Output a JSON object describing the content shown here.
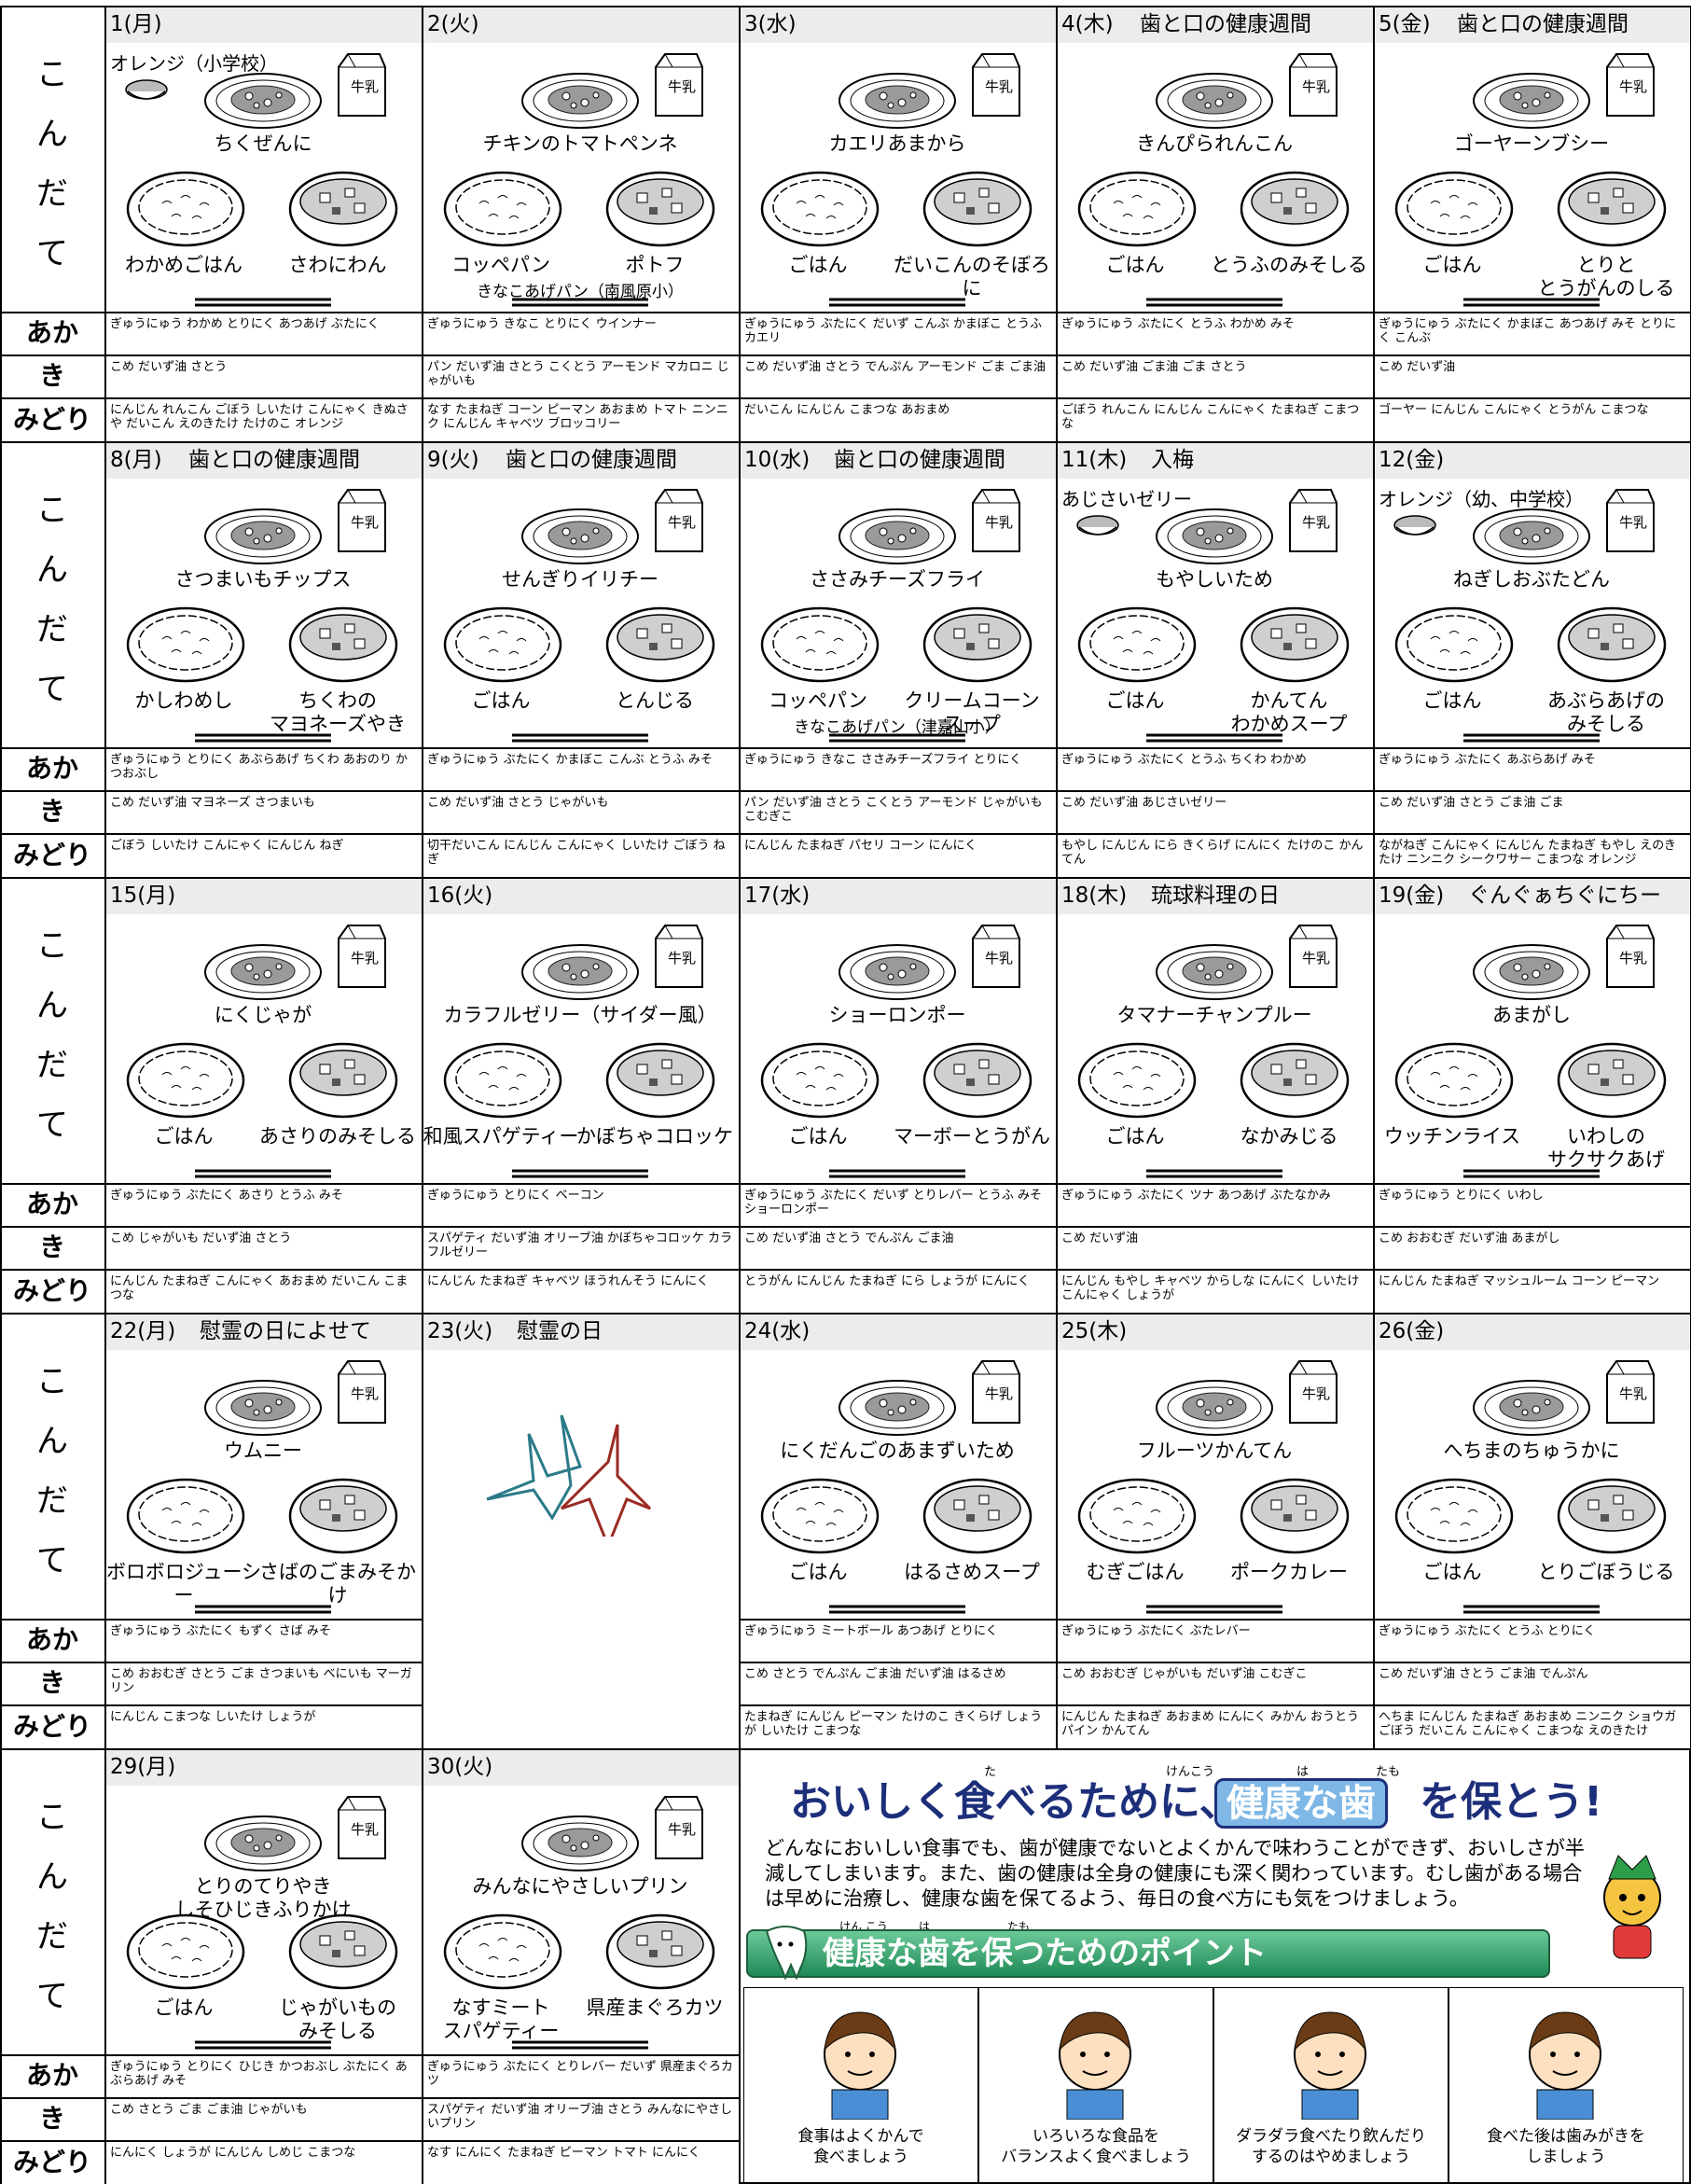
{
  "milk_label": "牛乳",
  "row_labels": {
    "kondate": "こんだて",
    "aka": "あか",
    "ki": "き",
    "midori": "みどり"
  },
  "weeks": [
    {
      "days": [
        {
          "date": "1(月)",
          "extra": "オレンジ（小学校）",
          "main": "ちくぜんに",
          "sides": [
            "わかめごはん",
            "さわにわん"
          ],
          "aka": "ぎゅうにゅう わかめ とりにく あつあげ ぶたにく",
          "ki": "こめ だいず油 さとう",
          "midori": "にんじん れんこん ごぼう しいたけ こんにゃく きぬさや だいこん えのきたけ たけのこ オレンジ"
        },
        {
          "date": "2(火)",
          "main": "チキンのトマトペンネ",
          "sides": [
            "コッペパン",
            "ポトフ"
          ],
          "note": "きなこあげパン（南風原小）",
          "aka": "ぎゅうにゅう きなこ とりにく ウインナー",
          "ki": "パン だいず油 さとう こくとう アーモンド マカロニ じゃがいも",
          "midori": "なす たまねぎ コーン ピーマン あおまめ トマト ニンニク にんじん キャベツ ブロッコリー"
        },
        {
          "date": "3(水)",
          "main": "カエリあまから",
          "sides": [
            "ごはん",
            "だいこんのそぼろに"
          ],
          "aka": "ぎゅうにゅう ぶたにく だいず こんぶ かまぼこ とうふ カエリ",
          "ki": "こめ だいず油 さとう でんぷん アーモンド ごま ごま油",
          "midori": "だいこん にんじん こまつな あおまめ"
        },
        {
          "date": "4(木)",
          "event": "歯と口の健康週間",
          "main": "きんぴられんこん",
          "sides": [
            "ごはん",
            "とうふのみそしる"
          ],
          "aka": "ぎゅうにゅう ぶたにく とうふ わかめ みそ",
          "ki": "こめ だいず油 ごま油 ごま さとう",
          "midori": "ごぼう れんこん にんじん こんにゃく たまねぎ こまつな"
        },
        {
          "date": "5(金)",
          "event": "歯と口の健康週間",
          "main": "ゴーヤーンブシー",
          "sides": [
            "ごはん",
            "とりと\nとうがんのしる"
          ],
          "aka": "ぎゅうにゅう ぶたにく かまぼこ あつあげ みそ とりにく こんぶ",
          "ki": "こめ だいず油",
          "midori": "ゴーヤー にんじん こんにゃく とうがん こまつな"
        }
      ]
    },
    {
      "days": [
        {
          "date": "8(月)",
          "event": "歯と口の健康週間",
          "main": "さつまいもチップス",
          "sides": [
            "かしわめし",
            "ちくわの\nマヨネーズやき"
          ],
          "aka": "ぎゅうにゅう とりにく あぶらあげ ちくわ あおのり かつおぶし",
          "ki": "こめ だいず油 マヨネーズ さつまいも",
          "midori": "ごぼう しいたけ こんにゃく にんじん ねぎ"
        },
        {
          "date": "9(火)",
          "event": "歯と口の健康週間",
          "main": "せんぎりイリチー",
          "sides": [
            "ごはん",
            "とんじる"
          ],
          "aka": "ぎゅうにゅう ぶたにく かまぼこ こんぶ とうふ みそ",
          "ki": "こめ だいず油 さとう じゃがいも",
          "midori": "切干だいこん にんじん こんにゃく しいたけ ごぼう ねぎ"
        },
        {
          "date": "10(水)",
          "event": "歯と口の健康週間",
          "main": "ささみチーズフライ",
          "sides": [
            "コッペパン",
            "クリームコーン\nスープ"
          ],
          "note": "きなこあげパン（津嘉山小）",
          "aka": "ぎゅうにゅう きなこ ささみチーズフライ とりにく",
          "ki": "パン だいず油 さとう こくとう アーモンド じゃがいも こむぎこ",
          "midori": "にんじん たまねぎ パセリ コーン にんにく"
        },
        {
          "date": "11(木)",
          "event": "入梅",
          "extra": "あじさいゼリー",
          "main": "もやしいため",
          "sides": [
            "ごはん",
            "かんてん\nわかめスープ"
          ],
          "aka": "ぎゅうにゅう ぶたにく とうふ ちくわ わかめ",
          "ki": "こめ だいず油 あじさいゼリー",
          "midori": "もやし にんじん にら きくらげ にんにく たけのこ かんてん"
        },
        {
          "date": "12(金)",
          "extra": "オレンジ（幼、中学校）",
          "main": "ねぎしおぶたどん",
          "sides": [
            "ごはん",
            "あぶらあげの\nみそしる"
          ],
          "aka": "ぎゅうにゅう ぶたにく あぶらあげ みそ",
          "ki": "こめ だいず油 さとう ごま油 ごま",
          "midori": "ながねぎ こんにゃく にんじん たまねぎ もやし えのきたけ ニンニク シークワサー こまつな オレンジ"
        }
      ]
    },
    {
      "days": [
        {
          "date": "15(月)",
          "main": "にくじゃが",
          "sides": [
            "ごはん",
            "あさりのみそしる"
          ],
          "aka": "ぎゅうにゅう ぶたにく あさり とうふ みそ",
          "ki": "こめ じゃがいも だいず油 さとう",
          "midori": "にんじん たまねぎ こんにゃく あおまめ だいこん こまつな"
        },
        {
          "date": "16(火)",
          "main": "カラフルゼリー（サイダー風）",
          "sides": [
            "和風スパゲティー",
            "かぼちゃコロッケ"
          ],
          "aka": "ぎゅうにゅう とりにく ベーコン",
          "ki": "スパゲティ だいず油 オリーブ油 かぼちゃコロッケ カラフルゼリー",
          "midori": "にんじん たまねぎ キャベツ ほうれんそう にんにく"
        },
        {
          "date": "17(水)",
          "main": "ショーロンポー",
          "sides": [
            "ごはん",
            "マーボーとうがん"
          ],
          "aka": "ぎゅうにゅう ぶたにく だいず とりレバー とうふ みそ ショーロンポー",
          "ki": "こめ だいず油 さとう でんぷん ごま油",
          "midori": "とうがん にんじん たまねぎ にら しょうが にんにく"
        },
        {
          "date": "18(木)",
          "event": "琉球料理の日",
          "main": "タマナーチャンプルー",
          "sides": [
            "ごはん",
            "なかみじる"
          ],
          "aka": "ぎゅうにゅう ぶたにく ツナ あつあげ ぶたなかみ",
          "ki": "こめ だいず油",
          "midori": "にんじん もやし キャベツ からしな にんにく しいたけ こんにゃく しょうが"
        },
        {
          "date": "19(金)",
          "event": "ぐんぐぁちぐにちー",
          "main": "あまがし",
          "sides": [
            "ウッチンライス",
            "いわしの\nサクサクあげ"
          ],
          "aka": "ぎゅうにゅう とりにく いわし",
          "ki": "こめ おおむぎ だいず油 あまがし",
          "midori": "にんじん たまねぎ マッシュルーム コーン ピーマン"
        }
      ]
    },
    {
      "days": [
        {
          "date": "22(月)",
          "event": "慰霊の日によせて",
          "main": "ウムニー",
          "sides": [
            "ボロボロジューシー",
            "さばのごまみそかけ"
          ],
          "aka": "ぎゅうにゅう ぶたにく もずく さば みそ",
          "ki": "こめ おおむぎ さとう ごま さつまいも べにいも マーガリン",
          "midori": "にんじん こまつな しいたけ しょうが"
        },
        {
          "date": "23(火)",
          "event": "慰霊の日"
        },
        {
          "date": "24(水)",
          "main": "にくだんごのあまずいため",
          "sides": [
            "ごはん",
            "はるさめスープ"
          ],
          "aka": "ぎゅうにゅう ミートボール あつあげ とりにく",
          "ki": "こめ さとう でんぷん ごま油 だいず油 はるさめ",
          "midori": "たまねぎ にんじん ピーマン たけのこ きくらげ しょうが しいたけ こまつな"
        },
        {
          "date": "25(木)",
          "main": "フルーツかんてん",
          "sides": [
            "むぎごはん",
            "ポークカレー"
          ],
          "aka": "ぎゅうにゅう ぶたにく ぶたレバー",
          "ki": "こめ おおむぎ じゃがいも だいず油 こむぎこ",
          "midori": "にんじん たまねぎ あおまめ にんにく みかん おうとう パイン かんてん"
        },
        {
          "date": "26(金)",
          "main": "へちまのちゅうかに",
          "sides": [
            "ごはん",
            "とりごぼうじる"
          ],
          "aka": "ぎゅうにゅう ぶたにく とうふ とりにく",
          "ki": "こめ だいず油 さとう ごま油 でんぷん",
          "midori": "へちま にんじん たまねぎ あおまめ ニンニク ショウガ ごぼう だいこん こんにゃく こまつな えのきたけ"
        }
      ]
    },
    {
      "days": [
        {
          "date": "29(月)",
          "main": "とりのてりやき\nしそひじきふりかけ",
          "sides": [
            "ごはん",
            "じゃがいもの\nみそしる"
          ],
          "aka": "ぎゅうにゅう とりにく ひじき かつおぶし ぶたにく あぶらあげ みそ",
          "ki": "こめ さとう ごま ごま油 じゃがいも",
          "midori": "にんにく しょうが にんじん しめじ こまつな"
        },
        {
          "date": "30(火)",
          "main": "みんなにやさしいプリン",
          "sides": [
            "なすミート\nスパゲティー",
            "県産まぐろカツ"
          ],
          "aka": "ぎゅうにゅう ぶたにく とりレバー だいず 県産まぐろカツ",
          "ki": "スパゲティ だいず油 オリーブ油 さとう みんなにやさしいプリン",
          "midori": "なす にんにく たまねぎ ピーマン トマト にんにく"
        }
      ]
    }
  ],
  "panel": {
    "title_a": "おいしく食べるために、",
    "title_b": "健康な歯",
    "title_c": "を保とう!",
    "furigana": [
      "た",
      "けんこう",
      "は",
      "たも"
    ],
    "text": "どんなにおいしい食事でも、歯が健康でないとよくかんで味わうことができず、おいしさが半減してしまいます。また、歯の健康は全身の健康にも深く関わっています。むし歯がある場合は早めに治療し、健康な歯を保てるよう、毎日の食べ方にも気をつけましょう。",
    "heading": "健康な歯を保つためのポイント",
    "heading_furigana": [
      "けん こう",
      "は",
      "たも"
    ],
    "points": [
      "食事はよくかんで\n食べましょう",
      "いろいろな食品を\nバランスよく食べましょう",
      "ダラダラ食べたり飲んだり\nするのはやめましょう",
      "食べた後は歯みがきを\nしましょう"
    ]
  }
}
